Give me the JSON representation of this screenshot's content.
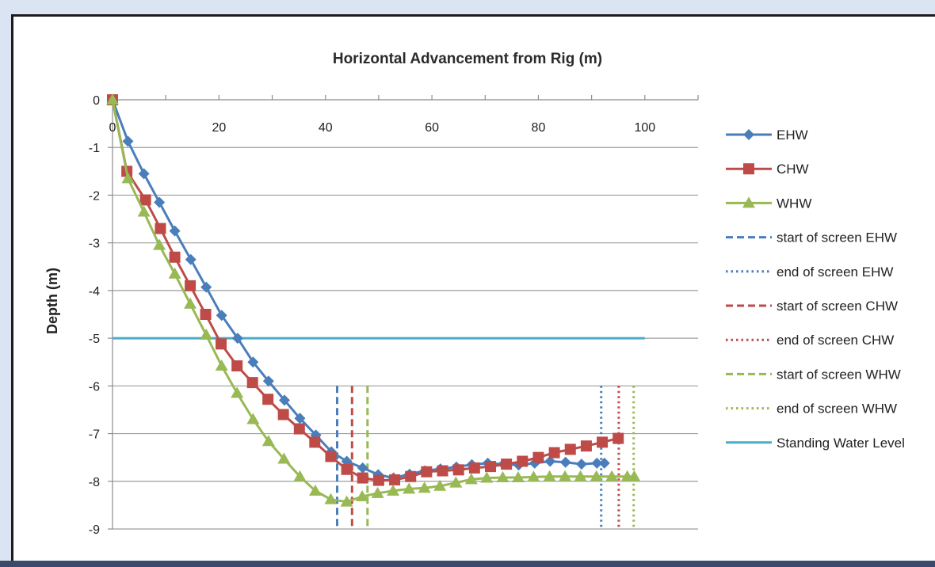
{
  "chart_data": {
    "type": "line",
    "title": "Horizontal Advancement from Rig (m)",
    "xlabel": "",
    "ylabel": "Depth (m)",
    "xlim": [
      0,
      110
    ],
    "ylim": [
      -9,
      0
    ],
    "x_ticks": [
      "0",
      "20",
      "40",
      "60",
      "80",
      "100"
    ],
    "y_ticks": [
      "0",
      "-1",
      "-2",
      "-3",
      "-4",
      "-5",
      "-6",
      "-7",
      "-8",
      "-9"
    ],
    "grid": "horizontal",
    "x_axis_position": "top",
    "legend_position": "right",
    "series": [
      {
        "name": "EHW",
        "color": "#4a7ebb",
        "marker": "diamond",
        "dash": "solid",
        "points": [
          [
            0,
            0
          ],
          [
            2.9,
            -0.87
          ],
          [
            5.9,
            -1.55
          ],
          [
            8.8,
            -2.15
          ],
          [
            11.7,
            -2.75
          ],
          [
            14.7,
            -3.35
          ],
          [
            17.6,
            -3.93
          ],
          [
            20.5,
            -4.52
          ],
          [
            23.5,
            -5.0
          ],
          [
            26.4,
            -5.5
          ],
          [
            29.3,
            -5.9
          ],
          [
            32.3,
            -6.3
          ],
          [
            35.2,
            -6.68
          ],
          [
            38.2,
            -7.03
          ],
          [
            41.1,
            -7.38
          ],
          [
            44.0,
            -7.58
          ],
          [
            47.0,
            -7.72
          ],
          [
            49.9,
            -7.86
          ],
          [
            52.8,
            -7.93
          ],
          [
            55.8,
            -7.85
          ],
          [
            58.7,
            -7.78
          ],
          [
            61.6,
            -7.74
          ],
          [
            64.6,
            -7.7
          ],
          [
            67.5,
            -7.65
          ],
          [
            70.5,
            -7.62
          ],
          [
            73.4,
            -7.64
          ],
          [
            76.3,
            -7.66
          ],
          [
            79.3,
            -7.62
          ],
          [
            82.2,
            -7.58
          ],
          [
            85.1,
            -7.6
          ],
          [
            88.1,
            -7.64
          ],
          [
            91.0,
            -7.62
          ],
          [
            92.4,
            -7.62
          ]
        ]
      },
      {
        "name": "CHW",
        "color": "#be4b48",
        "marker": "square",
        "dash": "solid",
        "points": [
          [
            0,
            0
          ],
          [
            2.7,
            -1.5
          ],
          [
            6.2,
            -2.1
          ],
          [
            9.0,
            -2.7
          ],
          [
            11.7,
            -3.3
          ],
          [
            14.6,
            -3.9
          ],
          [
            17.5,
            -4.5
          ],
          [
            20.4,
            -5.12
          ],
          [
            23.4,
            -5.58
          ],
          [
            26.3,
            -5.93
          ],
          [
            29.2,
            -6.28
          ],
          [
            32.1,
            -6.6
          ],
          [
            35.1,
            -6.9
          ],
          [
            38.0,
            -7.18
          ],
          [
            41.0,
            -7.48
          ],
          [
            44.0,
            -7.75
          ],
          [
            47.0,
            -7.93
          ],
          [
            50.0,
            -7.98
          ],
          [
            53.0,
            -7.97
          ],
          [
            56.0,
            -7.9
          ],
          [
            59.0,
            -7.8
          ],
          [
            62.0,
            -7.78
          ],
          [
            65.0,
            -7.76
          ],
          [
            68.0,
            -7.72
          ],
          [
            71.0,
            -7.69
          ],
          [
            74.0,
            -7.64
          ],
          [
            77.0,
            -7.58
          ],
          [
            80.0,
            -7.5
          ],
          [
            83.0,
            -7.4
          ],
          [
            86.0,
            -7.33
          ],
          [
            89.0,
            -7.26
          ],
          [
            92.0,
            -7.18
          ],
          [
            95.0,
            -7.1
          ]
        ]
      },
      {
        "name": "WHW",
        "color": "#98b954",
        "marker": "triangle",
        "dash": "solid",
        "points": [
          [
            0,
            0
          ],
          [
            2.9,
            -1.65
          ],
          [
            5.9,
            -2.35
          ],
          [
            8.8,
            -3.05
          ],
          [
            11.7,
            -3.65
          ],
          [
            14.6,
            -4.28
          ],
          [
            17.6,
            -4.93
          ],
          [
            20.5,
            -5.58
          ],
          [
            23.4,
            -6.15
          ],
          [
            26.4,
            -6.7
          ],
          [
            29.3,
            -7.16
          ],
          [
            32.2,
            -7.53
          ],
          [
            35.2,
            -7.9
          ],
          [
            38.1,
            -8.2
          ],
          [
            41.0,
            -8.38
          ],
          [
            44.0,
            -8.43
          ],
          [
            46.9,
            -8.32
          ],
          [
            49.8,
            -8.25
          ],
          [
            52.7,
            -8.2
          ],
          [
            55.7,
            -8.16
          ],
          [
            58.6,
            -8.14
          ],
          [
            61.5,
            -8.1
          ],
          [
            64.5,
            -8.03
          ],
          [
            67.4,
            -7.96
          ],
          [
            70.3,
            -7.93
          ],
          [
            73.3,
            -7.92
          ],
          [
            76.2,
            -7.92
          ],
          [
            79.1,
            -7.91
          ],
          [
            82.1,
            -7.9
          ],
          [
            85.0,
            -7.9
          ],
          [
            87.9,
            -7.9
          ],
          [
            90.9,
            -7.9
          ],
          [
            93.8,
            -7.9
          ],
          [
            96.7,
            -7.9
          ],
          [
            98.0,
            -7.9
          ]
        ]
      },
      {
        "name": "start of screen EHW",
        "color": "#4a7ebb",
        "marker": "none",
        "dash": "dashed",
        "points": [
          [
            42.2,
            -6.0
          ],
          [
            42.2,
            -9.0
          ]
        ]
      },
      {
        "name": "end of screen EHW",
        "color": "#4a7ebb",
        "marker": "none",
        "dash": "dotted",
        "points": [
          [
            91.8,
            -6.0
          ],
          [
            91.8,
            -9.0
          ]
        ]
      },
      {
        "name": "start of screen CHW",
        "color": "#be4b48",
        "marker": "none",
        "dash": "dashed",
        "points": [
          [
            45.0,
            -6.0
          ],
          [
            45.0,
            -9.0
          ]
        ]
      },
      {
        "name": "end of screen CHW",
        "color": "#be4b48",
        "marker": "none",
        "dash": "dotted",
        "points": [
          [
            95.1,
            -6.0
          ],
          [
            95.1,
            -9.0
          ]
        ]
      },
      {
        "name": "start of screen WHW",
        "color": "#98b954",
        "marker": "none",
        "dash": "dashed",
        "points": [
          [
            47.9,
            -6.0
          ],
          [
            47.9,
            -9.0
          ]
        ]
      },
      {
        "name": "end of screen WHW",
        "color": "#98b954",
        "marker": "none",
        "dash": "dotted",
        "points": [
          [
            97.9,
            -6.0
          ],
          [
            97.9,
            -9.0
          ]
        ]
      },
      {
        "name": "Standing Water Level",
        "color": "#4bacc6",
        "marker": "none",
        "dash": "solid",
        "points": [
          [
            0,
            -5.0
          ],
          [
            100,
            -5.0
          ]
        ]
      }
    ]
  }
}
